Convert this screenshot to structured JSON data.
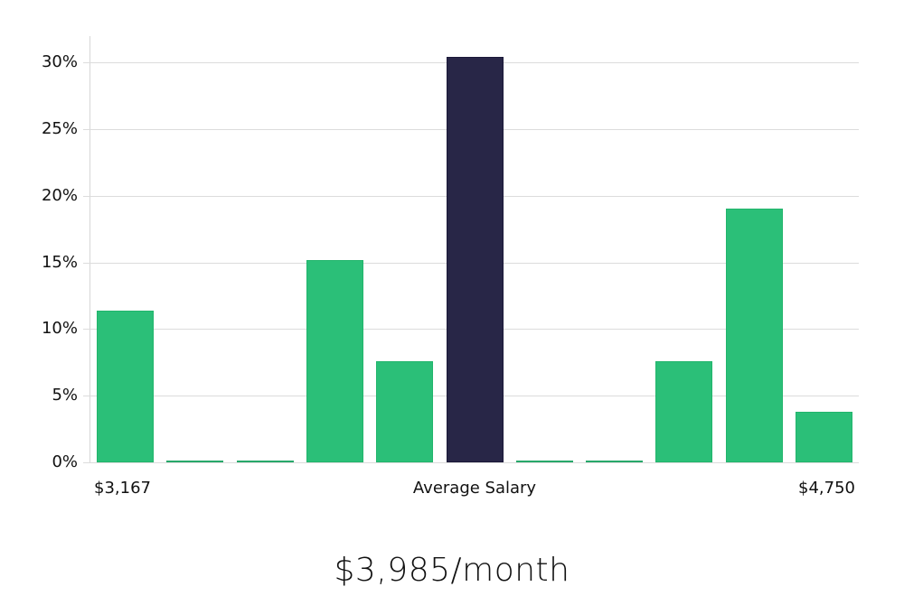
{
  "chart_data": {
    "type": "bar",
    "title": "",
    "xlabel": "Average Salary",
    "ylabel": "",
    "ylim": [
      0,
      32
    ],
    "yticks": [
      "0%",
      "5%",
      "10%",
      "15%",
      "20%",
      "25%",
      "30%"
    ],
    "ytick_values": [
      0,
      5,
      10,
      15,
      20,
      25,
      30
    ],
    "x_range_labels": {
      "min": "$3,167",
      "max": "$4,750"
    },
    "categories": [
      "bin1",
      "bin2",
      "bin3",
      "bin4",
      "bin5",
      "bin6",
      "bin7",
      "bin8",
      "bin9",
      "bin10",
      "bin11"
    ],
    "values": [
      11.4,
      0,
      0,
      15.2,
      7.6,
      30.4,
      0,
      0,
      7.6,
      19.0,
      3.8
    ],
    "highlight_index": 5,
    "colors": {
      "default": "#2bbf78",
      "highlight": "#282647",
      "grid": "#dcdcdc"
    },
    "grid": true,
    "legend": null
  },
  "axis": {
    "x_min_label": "$3,167",
    "x_center_label": "Average Salary",
    "x_max_label": "$4,750"
  },
  "summary": {
    "headline": "$3,985/month"
  }
}
